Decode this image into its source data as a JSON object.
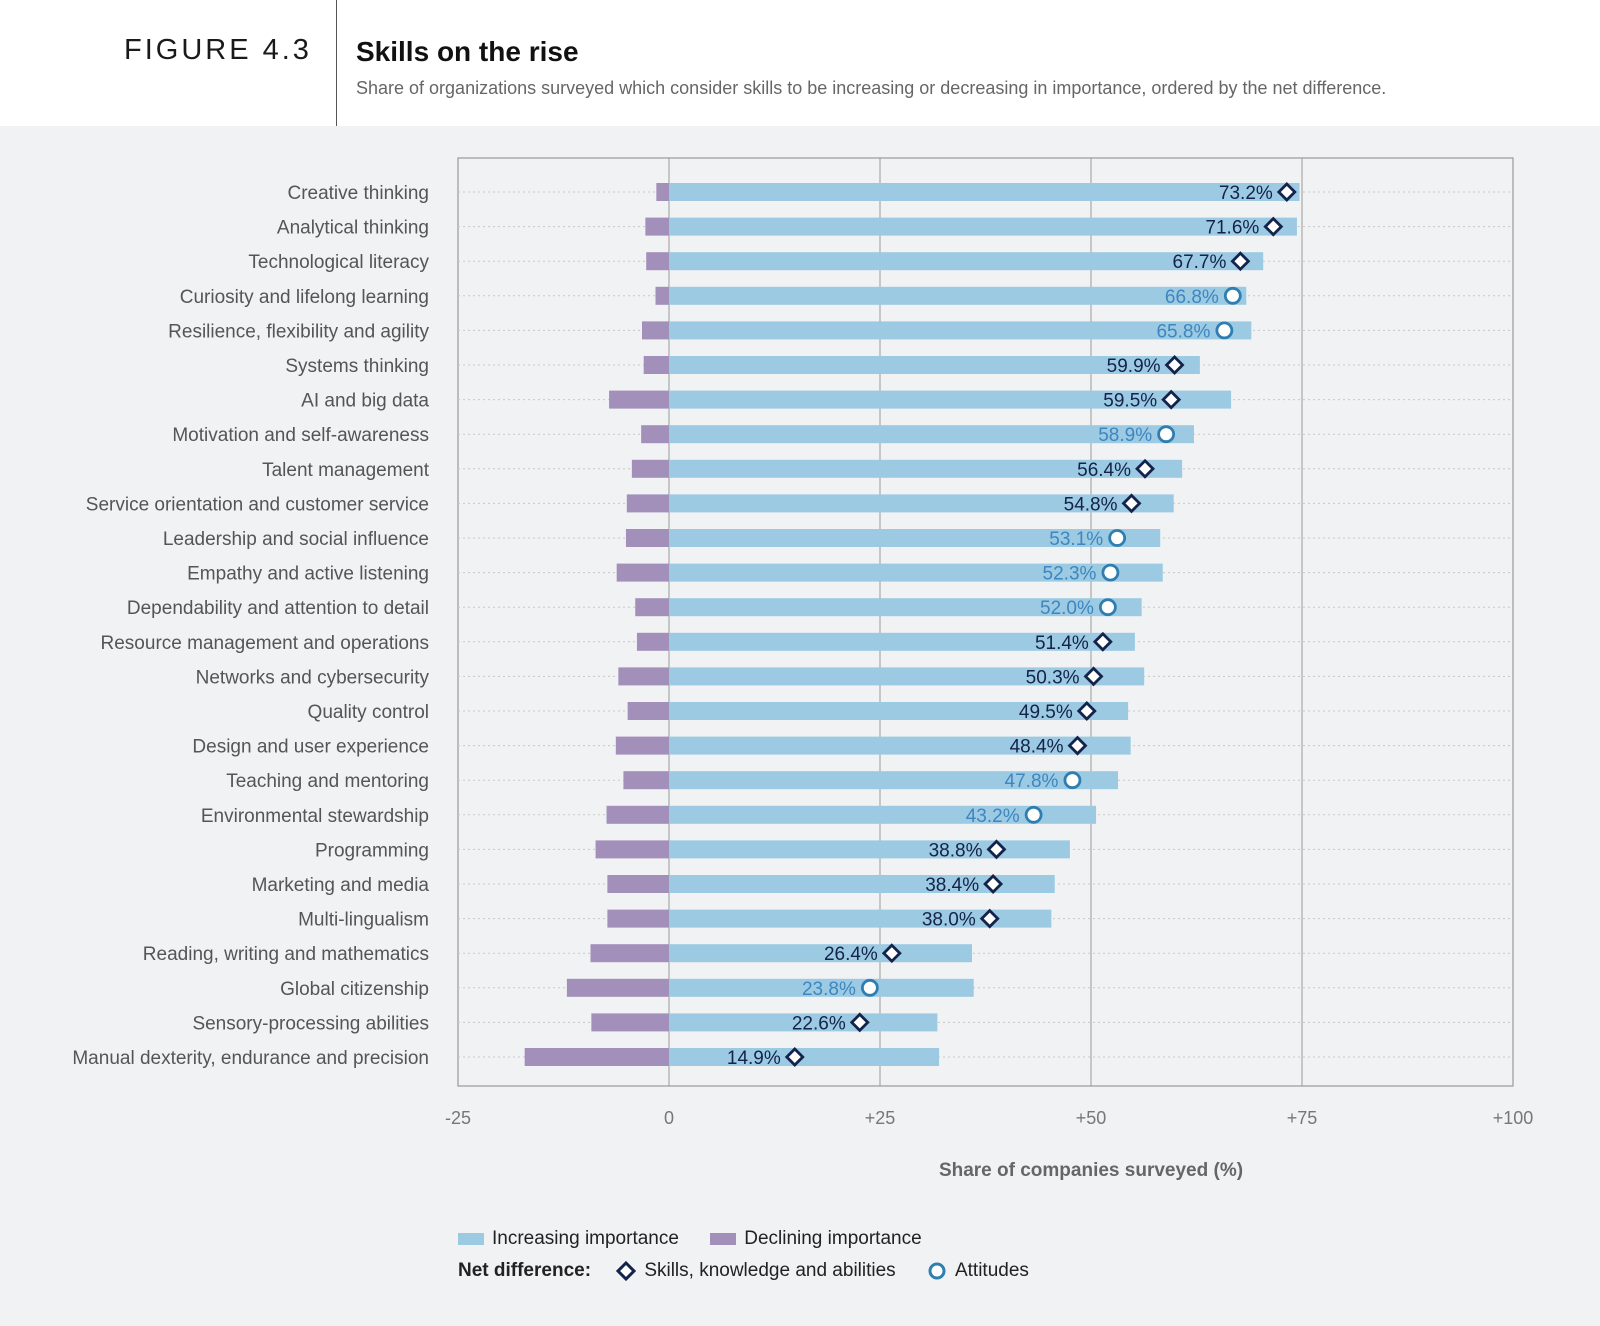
{
  "figure_label": "FIGURE 4.3",
  "title": "Skills on the rise",
  "subtitle": "Share of organizations surveyed which consider skills to be increasing or decreasing in importance, ordered by the net difference.",
  "colors": {
    "increasing": "#9ccae3",
    "declining": "#a28fba",
    "skills_marker": "#13234b",
    "attitudes_marker": "#2e7eb1",
    "skills_label": "#13234b",
    "attitudes_label": "#3d86bf"
  },
  "legend": {
    "increasing_label": "Increasing importance",
    "declining_label": "Declining importance",
    "net_label": "Net difference:",
    "skills_label": "Skills, knowledge and abilities",
    "attitudes_label": "Attitudes"
  },
  "chart_data": {
    "type": "bar",
    "orientation": "horizontal",
    "xlabel": "Share of companies surveyed (%)",
    "xlim": [
      -25,
      100
    ],
    "xticks": [
      -25,
      0,
      25,
      50,
      75,
      100
    ],
    "xtick_labels": [
      "-25",
      "0",
      "+25",
      "+50",
      "+75",
      "+100"
    ],
    "grid": true,
    "legend_position": "bottom",
    "categories": [
      "Creative thinking",
      "Analytical thinking",
      "Technological literacy",
      "Curiosity and lifelong learning",
      "Resilience, flexibility and agility",
      "Systems thinking",
      "AI and big data",
      "Motivation and self-awareness",
      "Talent management",
      "Service orientation and customer service",
      "Leadership and social influence",
      "Empathy and active listening",
      "Dependability and attention to detail",
      "Resource management and operations",
      "Networks and cybersecurity",
      "Quality control",
      "Design and user experience",
      "Teaching and mentoring",
      "Environmental stewardship",
      "Programming",
      "Marketing and media",
      "Multi-lingualism",
      "Reading, writing and mathematics",
      "Global citizenship",
      "Sensory-processing abilities",
      "Manual dexterity, endurance and precision"
    ],
    "series": [
      {
        "name": "Increasing importance",
        "values": [
          74.7,
          74.4,
          70.4,
          68.4,
          69.0,
          62.9,
          66.6,
          62.2,
          60.8,
          59.8,
          58.2,
          58.5,
          56.0,
          55.2,
          56.3,
          54.4,
          54.7,
          53.2,
          50.6,
          47.5,
          45.7,
          45.3,
          35.9,
          36.1,
          31.8,
          32.0
        ]
      },
      {
        "name": "Declining importance",
        "values": [
          -1.5,
          -2.8,
          -2.7,
          -1.6,
          -3.2,
          -3.0,
          -7.1,
          -3.3,
          -4.4,
          -5.0,
          -5.1,
          -6.2,
          -4.0,
          -3.8,
          -6.0,
          -4.9,
          -6.3,
          -5.4,
          -7.4,
          -8.7,
          -7.3,
          -7.3,
          -9.3,
          -12.1,
          -9.2,
          -17.1
        ]
      },
      {
        "name": "Net difference",
        "values": [
          73.2,
          71.6,
          67.7,
          66.8,
          65.8,
          59.9,
          59.5,
          58.9,
          56.4,
          54.8,
          53.1,
          52.3,
          52.0,
          51.4,
          50.3,
          49.5,
          48.4,
          47.8,
          43.2,
          38.8,
          38.4,
          38.0,
          26.4,
          23.8,
          22.6,
          14.9
        ],
        "labels": [
          "73.2%",
          "71.6%",
          "67.7%",
          "66.8%",
          "65.8%",
          "59.9%",
          "59.5%",
          "58.9%",
          "56.4%",
          "54.8%",
          "53.1%",
          "52.3%",
          "52.0%",
          "51.4%",
          "50.3%",
          "49.5%",
          "48.4%",
          "47.8%",
          "43.2%",
          "38.8%",
          "38.4%",
          "38.0%",
          "26.4%",
          "23.8%",
          "22.6%",
          "14.9%"
        ],
        "marker_type": [
          "skills",
          "skills",
          "skills",
          "attitudes",
          "attitudes",
          "skills",
          "skills",
          "attitudes",
          "skills",
          "skills",
          "attitudes",
          "attitudes",
          "attitudes",
          "skills",
          "skills",
          "skills",
          "skills",
          "attitudes",
          "attitudes",
          "skills",
          "skills",
          "skills",
          "skills",
          "attitudes",
          "skills",
          "skills"
        ]
      }
    ]
  }
}
